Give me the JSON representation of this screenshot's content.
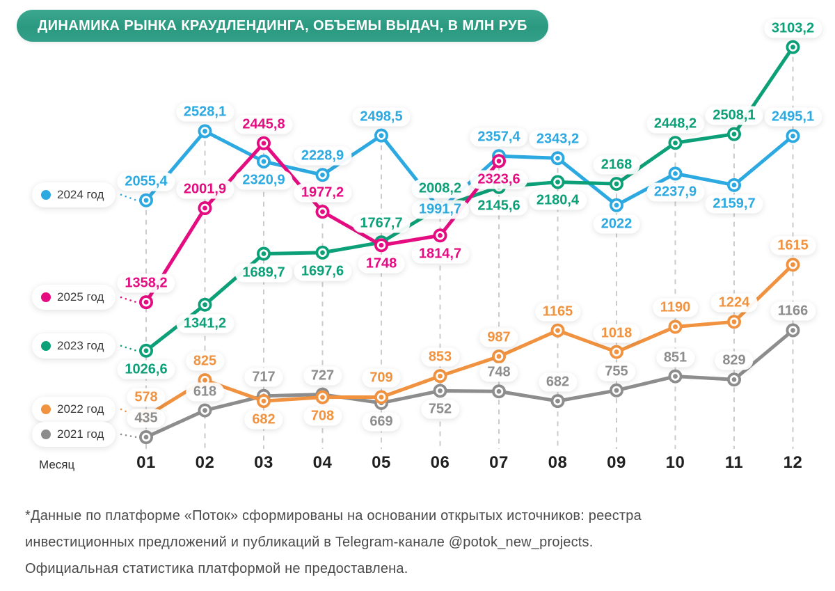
{
  "chart_data": {
    "type": "line",
    "title": "ДИНАМИКА РЫНКА КРАУДЛЕНДИНГА, ОБЪЕМЫ ВЫДАЧ, В МЛН РУБ",
    "xlabel": "Месяц",
    "ylabel": "",
    "x": [
      "01",
      "02",
      "03",
      "04",
      "05",
      "06",
      "07",
      "08",
      "09",
      "10",
      "11",
      "12"
    ],
    "grid": "vertical-dashed",
    "legend_position": "left",
    "series": [
      {
        "name": "2024 год",
        "color": "#2CA9E1",
        "values": [
          2055.4,
          2528.1,
          2320.9,
          2228.9,
          2498.5,
          1991.7,
          2357.4,
          2343.2,
          2022,
          2237.9,
          2159.7,
          2495.1
        ],
        "labels": [
          "2055,4",
          "2528,1",
          "2320,9",
          "2228,9",
          "2498,5",
          "1991,7",
          "2357,4",
          "2343,2",
          "2022",
          "2237,9",
          "2159,7",
          "2495,1"
        ],
        "label_pos": [
          "above",
          "above",
          "below",
          "above",
          "above",
          "on",
          "above",
          "above",
          "below",
          "below",
          "below",
          "above"
        ]
      },
      {
        "name": "2025 год",
        "color": "#E50B80",
        "values": [
          1358.2,
          2001.9,
          2445.8,
          1977.2,
          1748,
          1814.7,
          2323.6
        ],
        "labels": [
          "1358,2",
          "2001,9",
          "2445,8",
          "1977,2",
          "1748",
          "1814,7",
          "2323,6"
        ],
        "label_pos": [
          "above",
          "above",
          "above",
          "above",
          "below",
          "below",
          "below"
        ]
      },
      {
        "name": "2023 год",
        "color": "#0BA077",
        "values": [
          1026.6,
          1341.2,
          1689.7,
          1697.6,
          1767.7,
          2008.2,
          2145.6,
          2180.4,
          2168,
          2448.2,
          2508.1,
          3103.2
        ],
        "labels": [
          "1026,6",
          "1341,2",
          "1689,7",
          "1697,6",
          "1767,7",
          "2008,2",
          "2145,6",
          "2180,4",
          "2168",
          "2448,2",
          "2508,1",
          "3103,2"
        ],
        "label_pos": [
          "below",
          "below",
          "below",
          "below",
          "above",
          "above",
          "below",
          "below",
          "above",
          "above",
          "above",
          "above"
        ]
      },
      {
        "name": "2022 год",
        "color": "#F0923F",
        "values": [
          578,
          825,
          682,
          708,
          709,
          853,
          987,
          1165,
          1018,
          1190,
          1224,
          1615
        ],
        "labels": [
          "578",
          "825",
          "682",
          "708",
          "709",
          "853",
          "987",
          "1165",
          "1018",
          "1190",
          "1224",
          "1615"
        ],
        "label_pos": [
          "above",
          "above",
          "below",
          "below",
          "above",
          "above",
          "above",
          "above",
          "above",
          "above",
          "above",
          "above"
        ]
      },
      {
        "name": "2021 год",
        "color": "#8D8D8D",
        "values": [
          435,
          618,
          717,
          727,
          669,
          752,
          748,
          682,
          755,
          851,
          829,
          1166
        ],
        "labels": [
          "435",
          "618",
          "717",
          "727",
          "669",
          "752",
          "748",
          "682",
          "755",
          "851",
          "829",
          "1166"
        ],
        "label_pos": [
          "above",
          "above",
          "above",
          "above",
          "below",
          "below",
          "above",
          "above",
          "above",
          "above",
          "above",
          "above"
        ]
      }
    ]
  },
  "footnote": {
    "line1": "*Данные по платформе «Поток» сформированы на основании открытых источников: реестра",
    "line2": "инвестиционных предложений и публикаций в Telegram-канале @potok_new_projects.",
    "line3": "Официальная статистика платформой не предоставлена."
  }
}
